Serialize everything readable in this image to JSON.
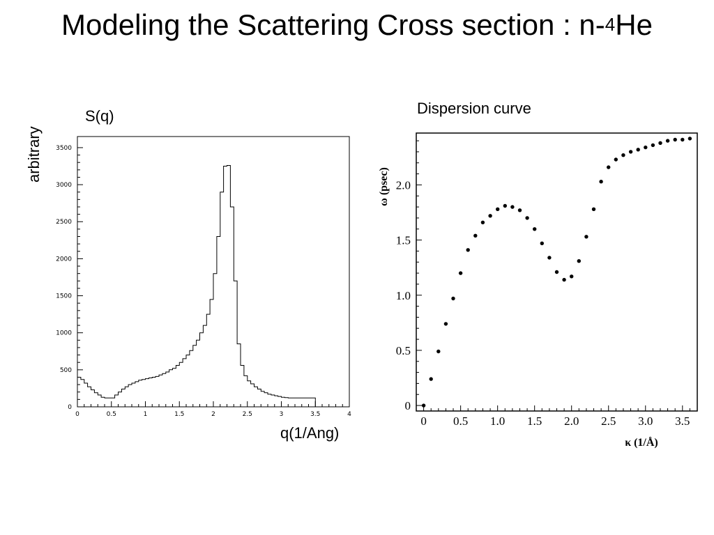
{
  "slide": {
    "title_main": "Modeling the Scattering Cross section : n-",
    "title_sup": "4",
    "title_tail": "He"
  },
  "chart_data": [
    {
      "type": "line",
      "title": "S(q)",
      "xlabel": "q(1/Ang)",
      "ylabel": "arbitrary",
      "xlim": [
        0,
        4
      ],
      "ylim": [
        0,
        3650
      ],
      "xticks": [
        "0",
        "0.5",
        "1",
        "1.5",
        "2",
        "2.5",
        "3",
        "3.5",
        "4"
      ],
      "yticks": [
        "0",
        "500",
        "1000",
        "1500",
        "2000",
        "2500",
        "3000",
        "3500"
      ],
      "step": 0.05,
      "values": [
        400,
        370,
        320,
        270,
        230,
        190,
        160,
        130,
        120,
        120,
        120,
        160,
        200,
        240,
        270,
        300,
        320,
        340,
        360,
        370,
        380,
        390,
        400,
        410,
        430,
        450,
        470,
        500,
        520,
        560,
        600,
        650,
        700,
        760,
        830,
        900,
        1000,
        1100,
        1250,
        1450,
        1800,
        2300,
        2900,
        3250,
        3260,
        2700,
        1700,
        850,
        560,
        420,
        350,
        310,
        270,
        240,
        210,
        190,
        170,
        160,
        150,
        140,
        130,
        125,
        120,
        120,
        120,
        120,
        120,
        120,
        120,
        120,
        0,
        0,
        0,
        0,
        0,
        0,
        0,
        0,
        0,
        0
      ]
    },
    {
      "type": "scatter",
      "title": "Dispersion curve",
      "xlabel": "κ (1/Å)",
      "ylabel": "ω (psec)",
      "xlim": [
        -0.1,
        3.7
      ],
      "ylim": [
        -0.05,
        2.47
      ],
      "xticks": [
        "0",
        "0.5",
        "1.0",
        "1.5",
        "2.0",
        "2.5",
        "3.0",
        "3.5"
      ],
      "yticks": [
        "0",
        "0.5",
        "1.0",
        "1.5",
        "2.0"
      ],
      "x": [
        0.0,
        0.1,
        0.2,
        0.3,
        0.4,
        0.5,
        0.6,
        0.7,
        0.8,
        0.9,
        1.0,
        1.1,
        1.2,
        1.3,
        1.4,
        1.5,
        1.6,
        1.7,
        1.8,
        1.9,
        2.0,
        2.1,
        2.2,
        2.3,
        2.4,
        2.5,
        2.6,
        2.7,
        2.8,
        2.9,
        3.0,
        3.1,
        3.2,
        3.3,
        3.4,
        3.5,
        3.6
      ],
      "y": [
        0.0,
        0.24,
        0.49,
        0.74,
        0.97,
        1.2,
        1.41,
        1.54,
        1.66,
        1.72,
        1.78,
        1.81,
        1.8,
        1.77,
        1.7,
        1.6,
        1.47,
        1.34,
        1.21,
        1.14,
        1.17,
        1.31,
        1.53,
        1.78,
        2.03,
        2.16,
        2.23,
        2.27,
        2.3,
        2.32,
        2.34,
        2.36,
        2.38,
        2.4,
        2.41,
        2.41,
        2.42
      ]
    }
  ]
}
